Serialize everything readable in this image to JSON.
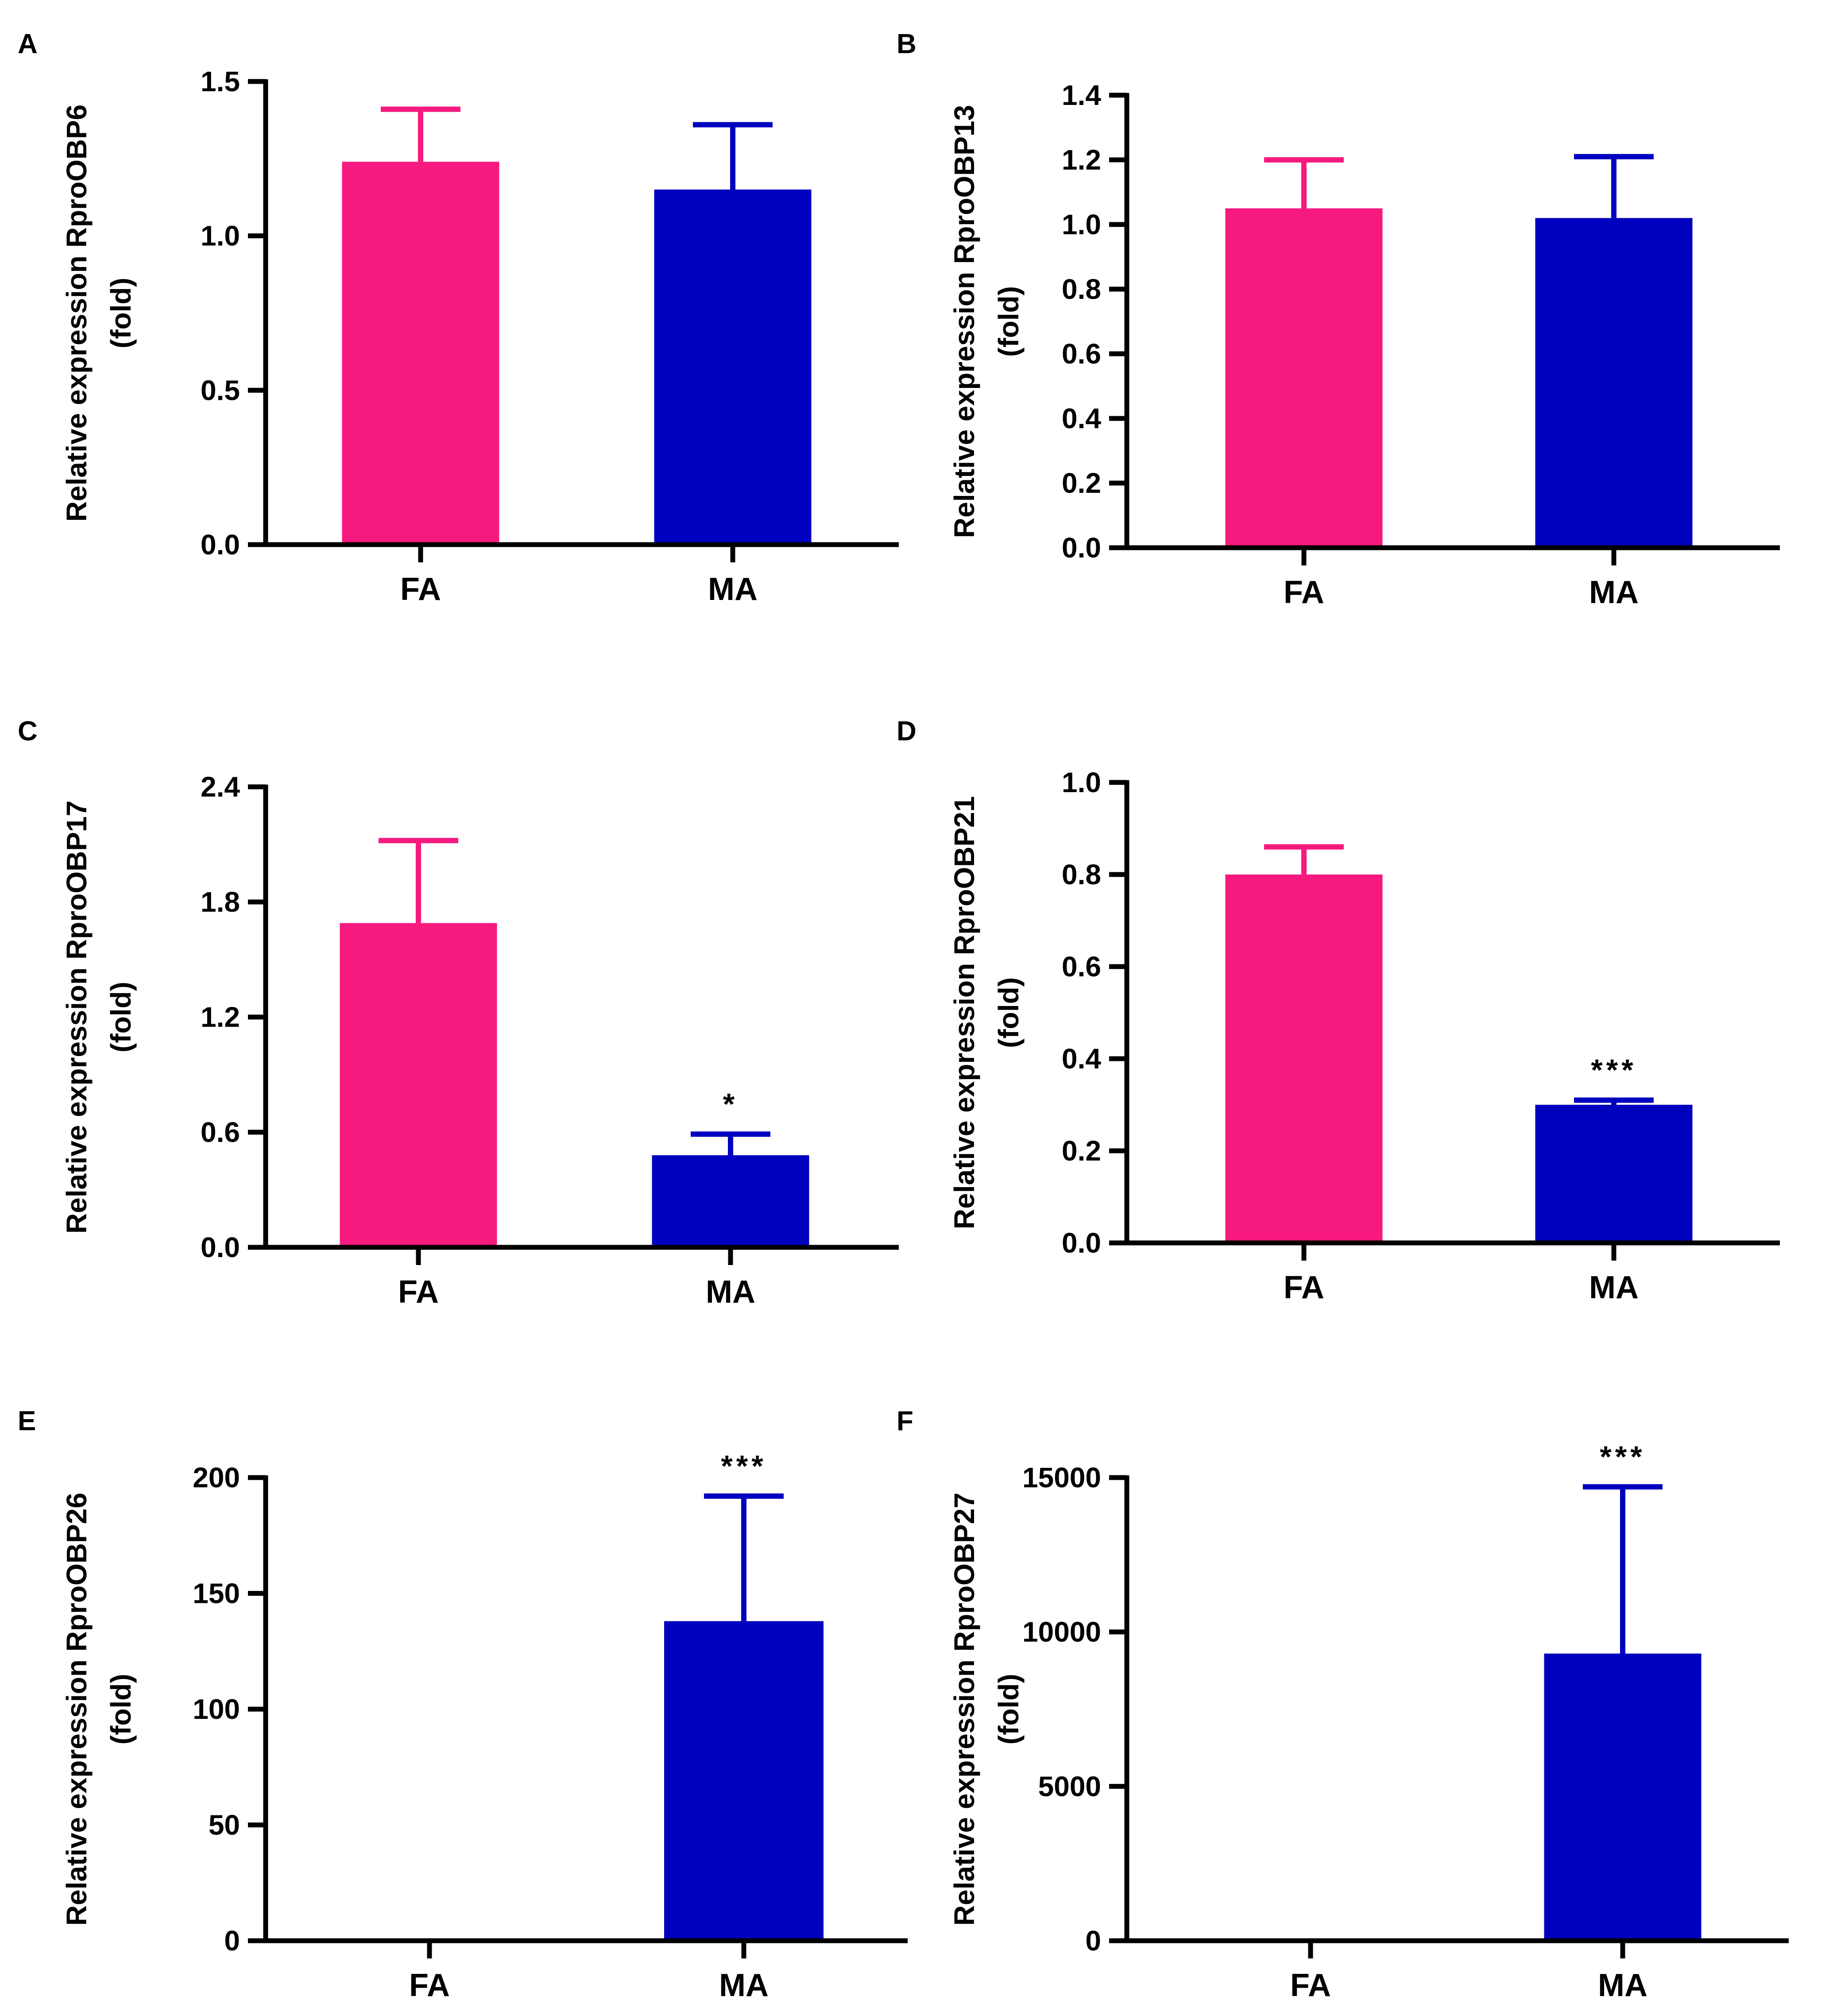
{
  "colors": {
    "FA": "#f71a7e",
    "MA": "#0000bf",
    "axis": "#000000"
  },
  "chart_data": [
    {
      "type": "bar",
      "panel": "A",
      "ylabel_line1": "Relative expression RproOBP6",
      "ylabel_line2": "(fold)",
      "categories": [
        "FA",
        "MA"
      ],
      "values": [
        1.24,
        1.15
      ],
      "errors": [
        0.17,
        0.21
      ],
      "significance": [
        "",
        ""
      ],
      "ylim": [
        0,
        1.5
      ],
      "yticks": [
        0,
        0.5,
        1.0,
        1.5
      ],
      "ytick_labels": [
        "0.0",
        "0.5",
        "1.0",
        "1.5"
      ]
    },
    {
      "type": "bar",
      "panel": "B",
      "ylabel_line1": "Relative expression RproOBP13",
      "ylabel_line2": "(fold)",
      "categories": [
        "FA",
        "MA"
      ],
      "values": [
        1.05,
        1.02
      ],
      "errors": [
        0.15,
        0.19
      ],
      "significance": [
        "",
        ""
      ],
      "ylim": [
        0,
        1.4
      ],
      "yticks": [
        0,
        0.2,
        0.4,
        0.6,
        0.8,
        1.0,
        1.2,
        1.4
      ],
      "ytick_labels": [
        "0.0",
        "0.2",
        "0.4",
        "0.6",
        "0.8",
        "1.0",
        "1.2",
        "1.4"
      ]
    },
    {
      "type": "bar",
      "panel": "C",
      "ylabel_line1": "Relative expression RproOBP17",
      "ylabel_line2": "(fold)",
      "categories": [
        "FA",
        "MA"
      ],
      "values": [
        1.69,
        0.48
      ],
      "errors": [
        0.43,
        0.11
      ],
      "significance": [
        "",
        "*"
      ],
      "ylim": [
        0,
        2.4
      ],
      "yticks": [
        0,
        0.6,
        1.2,
        1.8,
        2.4
      ],
      "ytick_labels": [
        "0.0",
        "0.6",
        "1.2",
        "1.8",
        "2.4"
      ]
    },
    {
      "type": "bar",
      "panel": "D",
      "ylabel_line1": "Relative expression RproOBP21",
      "ylabel_line2": "(fold)",
      "categories": [
        "FA",
        "MA"
      ],
      "values": [
        0.8,
        0.3
      ],
      "errors": [
        0.06,
        0.01
      ],
      "significance": [
        "",
        "***"
      ],
      "ylim": [
        0,
        1.0
      ],
      "yticks": [
        0,
        0.2,
        0.4,
        0.6,
        0.8,
        1.0
      ],
      "ytick_labels": [
        "0.0",
        "0.2",
        "0.4",
        "0.6",
        "0.8",
        "1.0"
      ]
    },
    {
      "type": "bar",
      "panel": "E",
      "ylabel_line1": "Relative expression RproOBP26",
      "ylabel_line2": "(fold)",
      "categories": [
        "FA",
        "MA"
      ],
      "values": [
        1,
        138
      ],
      "errors": [
        0,
        54
      ],
      "significance": [
        "",
        "***"
      ],
      "ylim": [
        0,
        200
      ],
      "yticks": [
        0,
        50,
        100,
        150,
        200
      ],
      "ytick_labels": [
        "0",
        "50",
        "100",
        "150",
        "200"
      ]
    },
    {
      "type": "bar",
      "panel": "F",
      "ylabel_line1": "Relative expression RproOBP27",
      "ylabel_line2": "(fold)",
      "categories": [
        "FA",
        "MA"
      ],
      "values": [
        0,
        9300
      ],
      "errors": [
        0,
        5400
      ],
      "significance": [
        "",
        "***"
      ],
      "ylim": [
        0,
        15000
      ],
      "yticks": [
        0,
        5000,
        10000,
        15000
      ],
      "ytick_labels": [
        "0",
        "5000",
        "10000",
        "15000"
      ]
    }
  ]
}
